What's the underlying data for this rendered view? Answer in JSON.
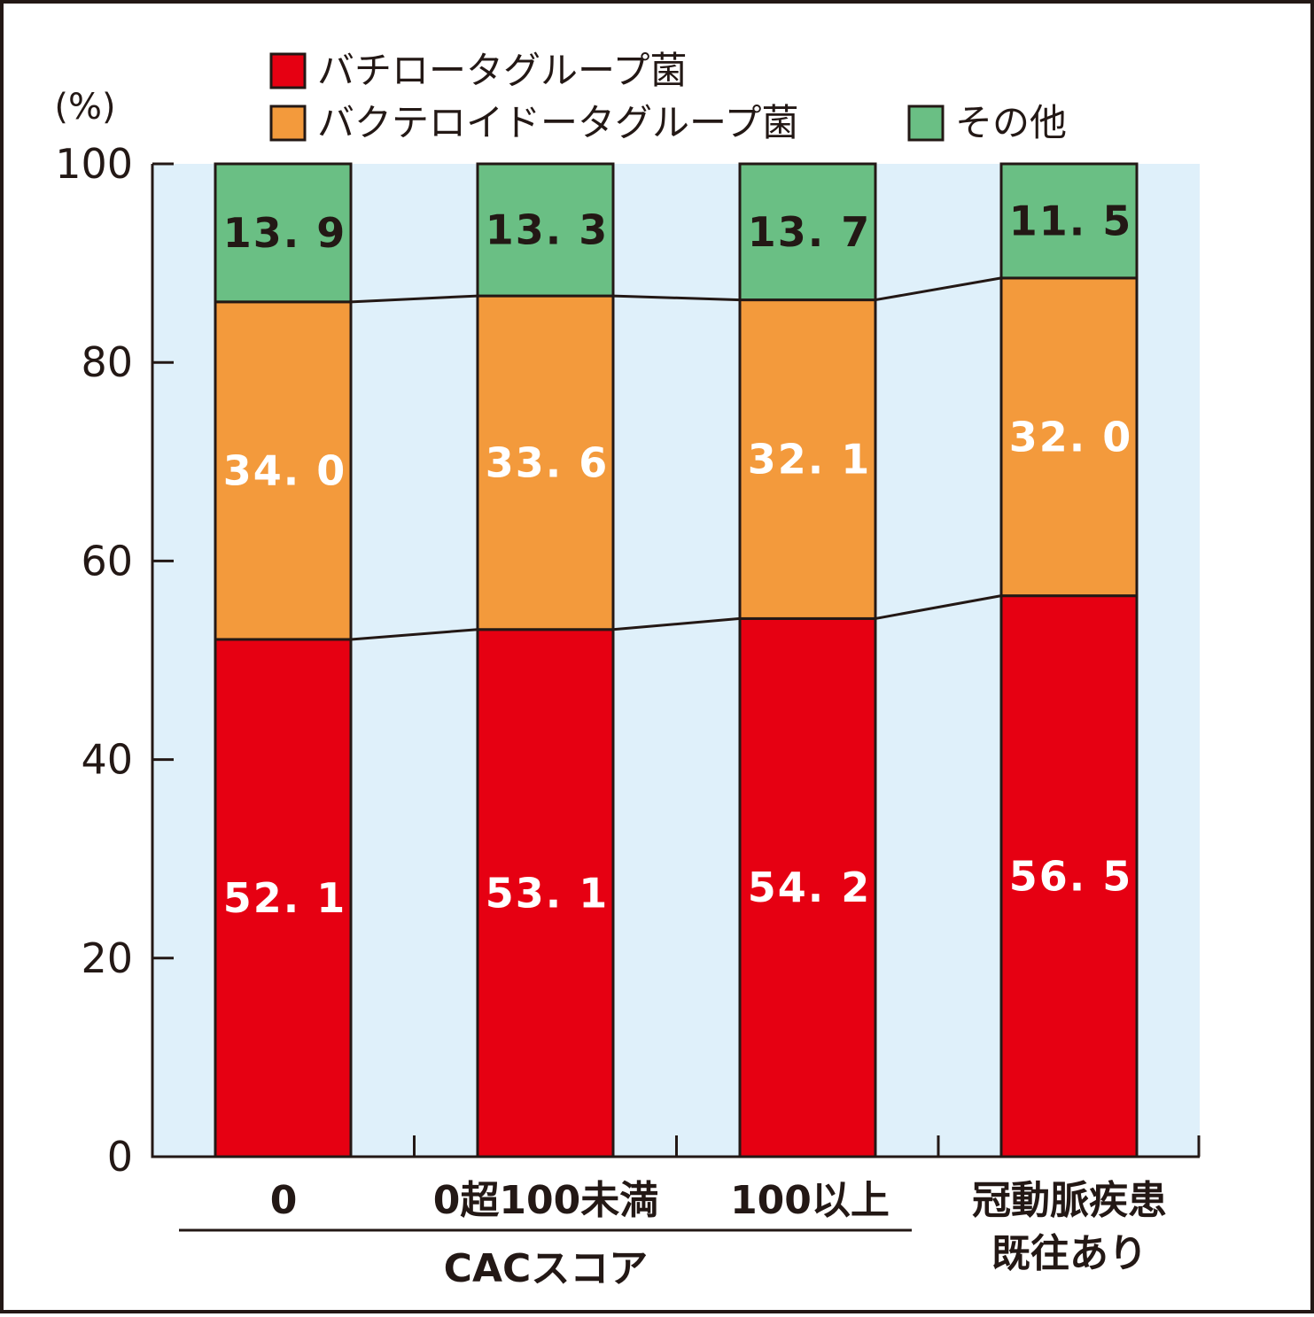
{
  "chart_data": {
    "type": "bar",
    "stacked": true,
    "ylabel": "(%)",
    "ylim": [
      0,
      100
    ],
    "yticks": [
      0,
      20,
      40,
      60,
      80,
      100
    ],
    "categories": [
      "0",
      "0超100未満",
      "100以上",
      "冠動脈疾患既往あり"
    ],
    "category_lines": [
      [
        "0"
      ],
      [
        "0超100未満"
      ],
      [
        "100以上"
      ],
      [
        "冠動脈疾患",
        "既往あり"
      ]
    ],
    "group_label": "CACスコア",
    "legend_placement": "top",
    "series": [
      {
        "name": "バチロータグループ菌",
        "color": "#e60012",
        "label_color": "#ffffff",
        "values": [
          52.1,
          53.1,
          54.2,
          56.5
        ],
        "labels": [
          "52. 1",
          "53. 1",
          "54. 2",
          "56. 5"
        ]
      },
      {
        "name": "バクテロイドータグループ菌",
        "color": "#f39a3c",
        "label_color": "#ffffff",
        "values": [
          34.0,
          33.6,
          32.1,
          32.0
        ],
        "labels": [
          "34. 0",
          "33. 6",
          "32. 1",
          "32. 0"
        ]
      },
      {
        "name": "その他",
        "color": "#6abf84",
        "label_color": "#231815",
        "values": [
          13.9,
          13.3,
          13.7,
          11.5
        ],
        "labels": [
          "13. 9",
          "13. 3",
          "13. 7",
          "11. 5"
        ]
      }
    ],
    "colors": {
      "plot_background": "#dff0fa",
      "axis": "#231815"
    }
  }
}
